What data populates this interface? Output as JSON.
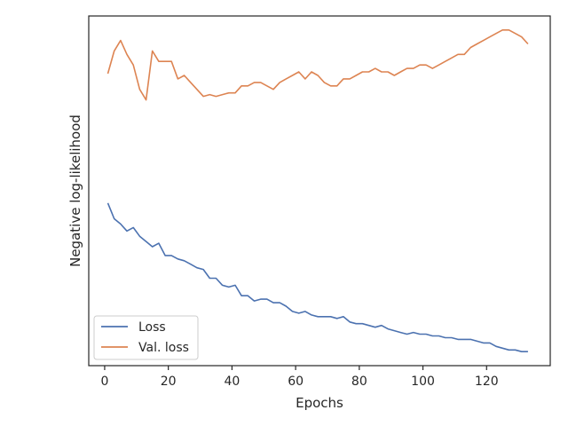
{
  "chart_data": {
    "type": "line",
    "xlabel": "Epochs",
    "ylabel": "Negative log-likelihood",
    "xlim": [
      -5,
      140
    ],
    "ylim": [
      0,
      1
    ],
    "y_ticks_shown": false,
    "x_ticks": [
      0,
      20,
      40,
      60,
      80,
      100,
      120
    ],
    "grid": false,
    "legend_position": "lower-left",
    "colors": {
      "Loss": "#4c72b0",
      "Val. loss": "#dd8452"
    },
    "series": [
      {
        "name": "Loss",
        "x": [
          1,
          3,
          5,
          7,
          9,
          11,
          13,
          15,
          17,
          19,
          21,
          23,
          25,
          27,
          29,
          31,
          33,
          35,
          37,
          39,
          41,
          43,
          45,
          47,
          49,
          51,
          53,
          55,
          57,
          59,
          61,
          63,
          65,
          67,
          69,
          71,
          73,
          75,
          77,
          79,
          81,
          83,
          85,
          87,
          89,
          91,
          93,
          95,
          97,
          99,
          101,
          103,
          105,
          107,
          109,
          111,
          113,
          115,
          117,
          119,
          121,
          123,
          125,
          127,
          129,
          131,
          133
        ],
        "values": [
          0.465,
          0.42,
          0.405,
          0.385,
          0.395,
          0.37,
          0.355,
          0.34,
          0.35,
          0.315,
          0.315,
          0.305,
          0.3,
          0.29,
          0.28,
          0.275,
          0.25,
          0.25,
          0.23,
          0.225,
          0.23,
          0.2,
          0.2,
          0.185,
          0.19,
          0.19,
          0.18,
          0.18,
          0.17,
          0.155,
          0.15,
          0.155,
          0.145,
          0.14,
          0.14,
          0.14,
          0.135,
          0.14,
          0.125,
          0.12,
          0.12,
          0.115,
          0.11,
          0.115,
          0.105,
          0.1,
          0.095,
          0.09,
          0.095,
          0.09,
          0.09,
          0.085,
          0.085,
          0.08,
          0.08,
          0.075,
          0.075,
          0.075,
          0.07,
          0.065,
          0.065,
          0.055,
          0.05,
          0.045,
          0.045,
          0.04,
          0.04
        ]
      },
      {
        "name": "Val. loss",
        "x": [
          1,
          3,
          5,
          7,
          9,
          11,
          13,
          15,
          17,
          19,
          21,
          23,
          25,
          27,
          29,
          31,
          33,
          35,
          37,
          39,
          41,
          43,
          45,
          47,
          49,
          51,
          53,
          55,
          57,
          59,
          61,
          63,
          65,
          67,
          69,
          71,
          73,
          75,
          77,
          79,
          81,
          83,
          85,
          87,
          89,
          91,
          93,
          95,
          97,
          99,
          101,
          103,
          105,
          107,
          109,
          111,
          113,
          115,
          117,
          119,
          121,
          123,
          125,
          127,
          129,
          131,
          133
        ],
        "values": [
          0.835,
          0.9,
          0.93,
          0.89,
          0.86,
          0.79,
          0.76,
          0.9,
          0.87,
          0.87,
          0.87,
          0.82,
          0.83,
          0.81,
          0.79,
          0.77,
          0.775,
          0.77,
          0.775,
          0.78,
          0.78,
          0.8,
          0.8,
          0.81,
          0.81,
          0.8,
          0.79,
          0.81,
          0.82,
          0.83,
          0.84,
          0.82,
          0.84,
          0.83,
          0.81,
          0.8,
          0.8,
          0.82,
          0.82,
          0.83,
          0.84,
          0.84,
          0.85,
          0.84,
          0.84,
          0.83,
          0.84,
          0.85,
          0.85,
          0.86,
          0.86,
          0.85,
          0.86,
          0.87,
          0.88,
          0.89,
          0.89,
          0.91,
          0.92,
          0.93,
          0.94,
          0.95,
          0.96,
          0.96,
          0.95,
          0.94,
          0.92
        ]
      }
    ]
  }
}
